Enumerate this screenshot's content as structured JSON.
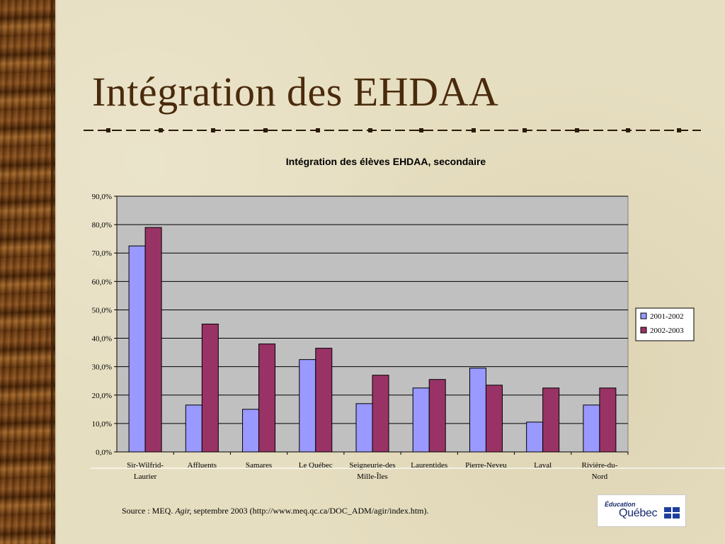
{
  "slide": {
    "title": "Intégration des EHDAA",
    "source_prefix": "Source : MEQ. ",
    "source_italic": "Agir,",
    "source_suffix": " septembre 2003 (http://www.meq.qc.ca/DOC_ADM/agir/index.htm).",
    "logo_top": "Éducation",
    "logo_bottom": "Québec"
  },
  "colors": {
    "series_2001": "#9999ff",
    "series_2002": "#993366",
    "plot_bg": "#c0c0c0",
    "title_text": "#4a2a0c"
  },
  "chart_data": {
    "type": "bar",
    "title": "Intégration des élèves EHDAA,  secondaire",
    "categories": [
      [
        "Sir-Wilfrid-",
        "Laurier"
      ],
      [
        "Affluents"
      ],
      [
        "Samares"
      ],
      [
        "Le Québec"
      ],
      [
        "Seigneurie-des",
        "Mille-Îles"
      ],
      [
        "Laurentides"
      ],
      [
        "Pierre-Neveu"
      ],
      [
        "Laval"
      ],
      [
        "Rivière-du-",
        "Nord"
      ]
    ],
    "series": [
      {
        "name": "2001-2002",
        "values": [
          72.5,
          16.5,
          15.0,
          32.5,
          17.0,
          22.5,
          29.5,
          10.5,
          16.5
        ]
      },
      {
        "name": "2002-2003",
        "values": [
          79.0,
          45.0,
          38.0,
          36.5,
          27.0,
          25.5,
          23.5,
          22.5,
          22.5
        ]
      }
    ],
    "ylim": [
      0,
      90
    ],
    "yticks": [
      "0,0%",
      "10,0%",
      "20,0%",
      "30,0%",
      "40,0%",
      "50,0%",
      "60,0%",
      "70,0%",
      "80,0%",
      "90,0%"
    ],
    "grid": true,
    "legend": "right"
  }
}
